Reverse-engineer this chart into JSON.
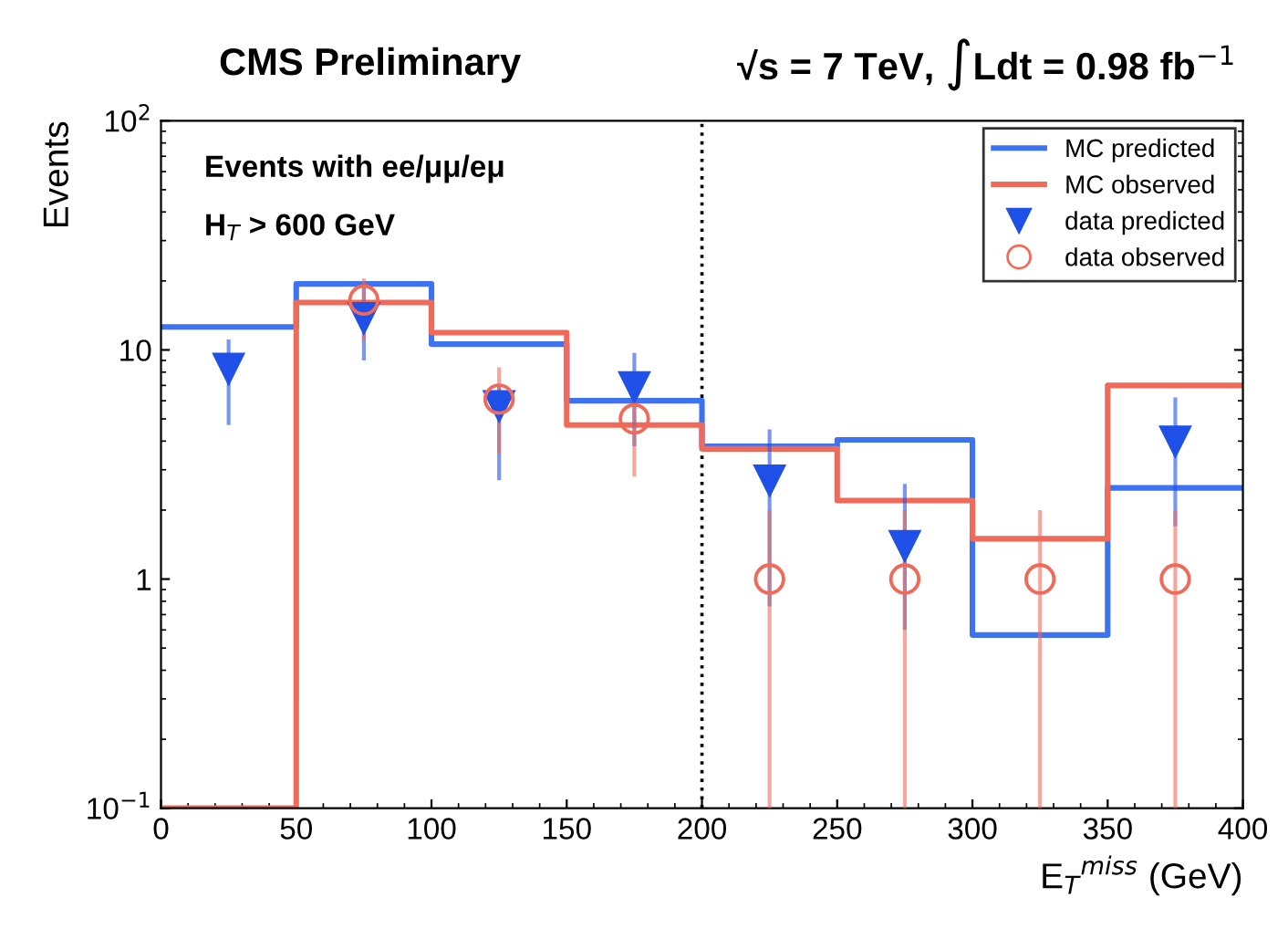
{
  "chart_data": {
    "type": "step",
    "title": "CMS Preliminary",
    "subtitle": "√s = 7 TeV, ∫Ldt = 0.98 fb$^{−1}$",
    "xlabel": "E$_{T}$$^{miss}$ (GeV)",
    "ylabel": "Events",
    "annotations": [
      "Events with ee/μμ/eμ",
      "H$_{T}$ > 600 GeV"
    ],
    "log": "y",
    "xlim": [
      0,
      400
    ],
    "ylim": [
      0.1,
      100
    ],
    "xticks": [
      0,
      50,
      100,
      150,
      200,
      250,
      300,
      350,
      400
    ],
    "yticks": [
      {
        "value": 0.1,
        "label": "10$^{−1}$"
      },
      1,
      10,
      {
        "value": 100,
        "label": "10$^{2}$"
      }
    ],
    "legend": "top right",
    "grid": false,
    "ref_lines": [
      {
        "axis": "x",
        "value": 200,
        "label": null,
        "color": "#000000",
        "line_style": "dotted"
      }
    ],
    "series": [
      {
        "name": "MC predicted",
        "type": "step",
        "color": "#3d72f0",
        "x": [
          0,
          50,
          100,
          150,
          200,
          250,
          300,
          350,
          400
        ],
        "values": [
          12.6,
          19.4,
          10.6,
          6.0,
          3.8,
          4.05,
          0.57,
          2.5,
          2.5
        ]
      },
      {
        "name": "MC observed",
        "color": "#f06a5a",
        "x": [
          0,
          50,
          100,
          150,
          200,
          250,
          300,
          350,
          400
        ],
        "values": [
          0.1,
          16.1,
          11.9,
          4.7,
          3.7,
          2.2,
          1.5,
          7.0,
          7.0
        ]
      },
      {
        "name": "data predicted",
        "type": "scatter",
        "marker": "triangle",
        "color": "#1f50e8",
        "x": [
          25,
          75,
          125,
          175,
          225,
          275,
          375
        ],
        "values": [
          8.3,
          13.8,
          5.7,
          6.9,
          2.7,
          1.4,
          4.0
        ],
        "errors": [
          [
            4.7,
            11.1
          ],
          [
            9.0,
            19.7
          ],
          [
            2.7,
            7.0
          ],
          [
            3.8,
            9.7
          ],
          [
            0.76,
            4.5
          ],
          [
            0.6,
            2.6
          ],
          [
            1.7,
            6.2
          ]
        ]
      },
      {
        "name": "data observed",
        "type": "scatter",
        "marker": "circle",
        "color": "#f06a5a",
        "x": [
          75,
          125,
          175,
          225,
          275,
          325,
          375
        ],
        "values": [
          16.5,
          6.1,
          5.0,
          1,
          1,
          1,
          1
        ],
        "errors": [
          [
            11.0,
            20.5
          ],
          [
            3.5,
            8.4
          ],
          [
            2.8,
            6.4
          ],
          [
            0.1,
            2.0
          ],
          [
            0.1,
            2.0
          ],
          [
            0.1,
            2.0
          ],
          [
            0.1,
            2.0
          ]
        ]
      }
    ]
  }
}
